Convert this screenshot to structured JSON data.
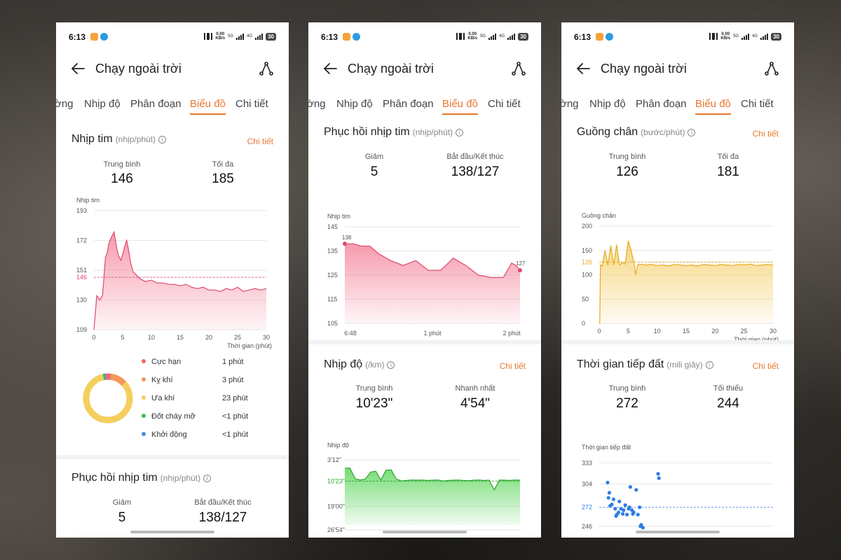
{
  "status": {
    "time": "6:13",
    "net_speed": "0.00",
    "net_unit": "KB/s",
    "gen1": "5G",
    "gen2": "4G",
    "battery": "30"
  },
  "header": {
    "title": "Chạy ngoài trời"
  },
  "tabs": [
    "ờng",
    "Nhịp độ",
    "Phân đoạn",
    "Biểu đồ",
    "Chi tiết"
  ],
  "colors": {
    "accent": "#e8772e",
    "heart": "#f06b86",
    "cadence": "#f2bf3f",
    "pace": "#3cc13c",
    "contact": "#2f7de1"
  },
  "heart_rate": {
    "title": "Nhịp tim",
    "unit": "(nhịp/phút)",
    "detail": "Chi tiết",
    "avg_label": "Trung bình",
    "avg": "146",
    "max_label": "Tối đa",
    "max": "185",
    "chart_label": "Nhịp tim",
    "xlabel": "Thời gian (phút)",
    "y_ticks": [
      "193",
      "172",
      "151",
      "146",
      "130",
      "109"
    ],
    "x_ticks": [
      "0",
      "5",
      "10",
      "15",
      "20",
      "25",
      "30"
    ]
  },
  "zones": [
    {
      "name": "Cực hạn",
      "value": "1 phút",
      "color": "#f06b6b"
    },
    {
      "name": "Kỵ khí",
      "value": "3 phút",
      "color": "#f4975a"
    },
    {
      "name": "Ưa khí",
      "value": "23 phút",
      "color": "#f4cf5e"
    },
    {
      "name": "Đốt cháy mỡ",
      "value": "<1 phút",
      "color": "#3fbf4f"
    },
    {
      "name": "Khởi động",
      "value": "<1 phút",
      "color": "#4a90e2"
    }
  ],
  "recovery": {
    "title": "Phục hồi nhịp tim",
    "unit": "(nhịp/phút)",
    "drop_label": "Giảm",
    "drop": "5",
    "se_label": "Bắt đầu/Kết thúc",
    "se": "138/127",
    "chart_label": "Nhịp tim",
    "y_ticks": [
      "145",
      "135",
      "125",
      "115",
      "105"
    ],
    "x_ticks": [
      "6:48",
      "1 phút",
      "2 phút"
    ],
    "start_label": "138",
    "end_label": "127"
  },
  "pace": {
    "title": "Nhịp độ",
    "unit": "(/km)",
    "detail": "Chi tiết",
    "avg_label": "Trung bình",
    "avg": "10'23\"",
    "best_label": "Nhanh nhất",
    "best": "4'54\"",
    "chart_label": "Nhịp độ",
    "y_ticks": [
      "3'12\"",
      "10'23\"",
      "19'00\"",
      "26'54\""
    ]
  },
  "cadence": {
    "title": "Guồng chân",
    "unit": "(bước/phút)",
    "detail": "Chi tiết",
    "avg_label": "Trung bình",
    "avg": "126",
    "max_label": "Tối đa",
    "max": "181",
    "chart_label": "Guồng chân",
    "xlabel": "Thời gian (phút)",
    "y_ticks": [
      "200",
      "150",
      "126",
      "100",
      "50",
      "0"
    ],
    "x_ticks": [
      "0",
      "5",
      "10",
      "15",
      "20",
      "25",
      "30"
    ]
  },
  "contact": {
    "title": "Thời gian tiếp đất",
    "unit": "(mili giây)",
    "detail": "Chi tiết",
    "avg_label": "Trung bình",
    "avg": "272",
    "min_label": "Tối thiểu",
    "min": "244",
    "chart_label": "Thời gian tiếp đất",
    "y_ticks": [
      "333",
      "304",
      "272",
      "246"
    ]
  },
  "chart_data": [
    {
      "type": "area",
      "title": "Nhịp tim",
      "ylabel": "Nhịp tim",
      "xlabel": "Thời gian (phút)",
      "ylim": [
        109,
        193
      ],
      "xlim": [
        0,
        30
      ],
      "avg_line": 146,
      "x": [
        0,
        0.5,
        1,
        1.5,
        2,
        2.3,
        2.6,
        3,
        3.5,
        4,
        4.3,
        4.7,
        5,
        5.3,
        5.7,
        6,
        6.4,
        6.8,
        7.3,
        8,
        9,
        10,
        11,
        12,
        13,
        14,
        15,
        16,
        17,
        18,
        19,
        20,
        21,
        22,
        23,
        24,
        25,
        26,
        27,
        28,
        29,
        30
      ],
      "values": [
        109,
        133,
        130,
        133,
        160,
        163,
        170,
        174,
        178,
        166,
        161,
        158,
        162,
        167,
        172,
        166,
        156,
        150,
        148,
        145,
        143,
        144,
        142,
        142,
        141,
        141,
        140,
        141,
        139,
        138,
        139,
        137,
        137,
        136,
        138,
        137,
        139,
        136,
        137,
        138,
        137,
        138
      ]
    },
    {
      "type": "area",
      "title": "Phục hồi nhịp tim",
      "ylabel": "Nhịp tim",
      "ylim": [
        105,
        145
      ],
      "x_labels": [
        "6:48",
        "1 phút",
        "2 phút"
      ],
      "start": 138,
      "end": 127,
      "x": [
        0,
        0.1,
        0.2,
        0.3,
        0.4,
        0.55,
        0.7,
        0.85,
        1.0,
        1.15,
        1.3,
        1.45,
        1.6,
        1.75,
        1.9,
        2.0,
        2.05,
        2.1
      ],
      "values": [
        138,
        138,
        137,
        137,
        134,
        131,
        129,
        131,
        127,
        127,
        132,
        129,
        125,
        124,
        124,
        130,
        129,
        127
      ]
    },
    {
      "type": "area",
      "title": "Nhịp độ",
      "ylabel": "Nhịp độ",
      "y_labels": [
        "3'12\"",
        "10'23\"",
        "19'00\"",
        "26'54\""
      ],
      "values_sec": [
        360,
        358,
        575,
        600,
        580,
        440,
        420,
        600,
        400,
        395,
        580,
        620,
        610,
        600,
        605,
        600,
        610,
        605,
        600,
        620,
        610,
        605,
        600,
        610,
        615,
        605,
        600,
        610,
        605,
        800,
        600,
        605,
        610,
        600,
        605
      ]
    },
    {
      "type": "area",
      "title": "Guồng chân",
      "ylabel": "Guồng chân",
      "xlabel": "Thời gian (phút)",
      "ylim": [
        0,
        200
      ],
      "xlim": [
        0,
        30
      ],
      "avg_line": 126,
      "x": [
        0,
        0.1,
        0.2,
        0.5,
        1,
        1.5,
        2,
        2.5,
        3,
        3.5,
        4,
        4.5,
        5,
        5.5,
        6,
        6.3,
        6.6,
        7,
        8,
        9,
        10,
        11,
        12,
        13,
        14,
        15,
        16,
        17,
        18,
        19,
        20,
        21,
        22,
        23,
        24,
        25,
        26,
        27,
        28,
        29,
        30
      ],
      "values": [
        0,
        0,
        120,
        118,
        150,
        120,
        160,
        120,
        162,
        120,
        125,
        122,
        170,
        150,
        124,
        100,
        120,
        122,
        120,
        121,
        119,
        120,
        118,
        121,
        120,
        119,
        120,
        118,
        121,
        120,
        119,
        121,
        120,
        119,
        121,
        120,
        122,
        119,
        120,
        121,
        120
      ]
    },
    {
      "type": "scatter",
      "title": "Thời gian tiếp đất",
      "ylabel": "Thời gian tiếp đất",
      "ylim": [
        240,
        340
      ],
      "x": [
        1,
        1.2,
        1.5,
        1.7,
        1.9,
        2.1,
        2.3,
        2.6,
        2.9,
        3.1,
        3.3,
        3.6,
        3.9,
        4.1,
        4.4,
        4.8,
        5.0,
        5.2,
        1.1,
        1.3,
        2.0,
        2.8,
        3.5,
        4.0,
        4.6,
        4.9,
        7.0,
        7.1,
        3.7,
        2.4
      ],
      "values": [
        306,
        292,
        276,
        283,
        270,
        262,
        265,
        270,
        268,
        275,
        262,
        272,
        268,
        265,
        296,
        272,
        248,
        244,
        285,
        274,
        260,
        263,
        270,
        263,
        262,
        246,
        318,
        312,
        300,
        280
      ]
    }
  ]
}
